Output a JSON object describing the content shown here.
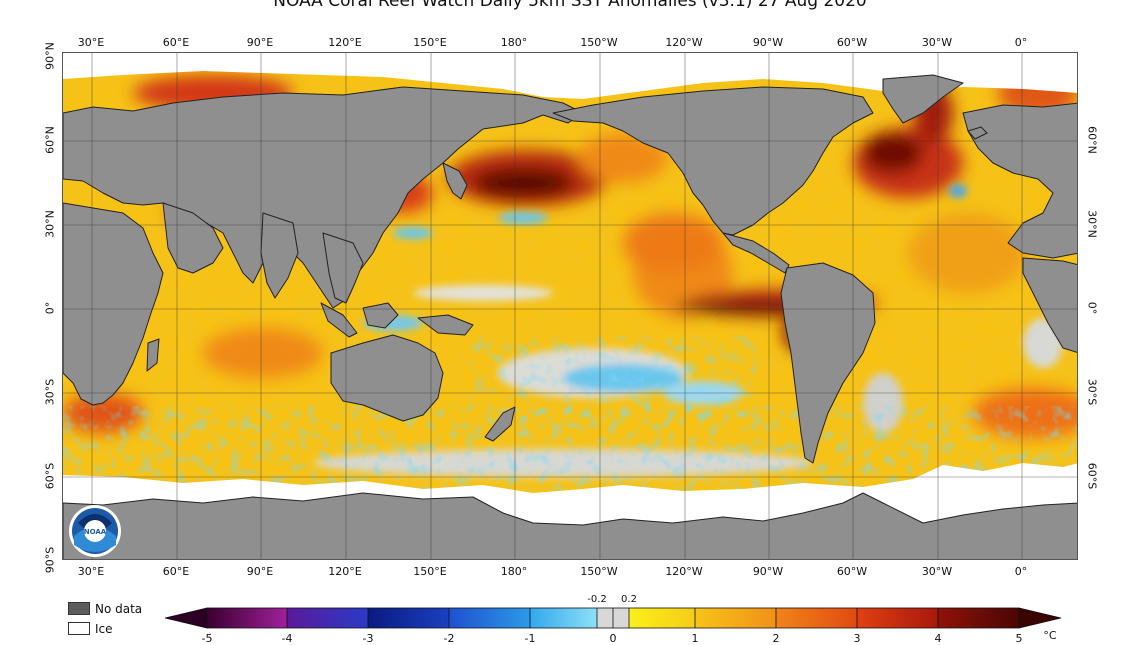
{
  "title": "NOAA Coral Reef Watch Daily 5km SST Anomalies (v3.1) 27 Aug 2020",
  "map": {
    "lon_labels_top": [
      "30°E",
      "60°E",
      "90°E",
      "120°E",
      "150°E",
      "180°",
      "150°W",
      "120°W",
      "90°W",
      "60°W",
      "30°W",
      "0°"
    ],
    "lon_labels_bottom": [
      "30°E",
      "60°E",
      "90°E",
      "120°E",
      "150°E",
      "180°",
      "150°W",
      "120°W",
      "90°W",
      "60°W",
      "30°W",
      "0°"
    ],
    "lat_labels_left": [
      "90°N",
      "60°N",
      "30°N",
      "0°",
      "30°S",
      "60°S",
      "90°S"
    ],
    "lat_labels_right": [
      "60°N",
      "30°N",
      "0°",
      "30°S",
      "60°S"
    ],
    "logo_text": "NOAA",
    "colors": {
      "land": "#8f8f8f",
      "no_data": "#5c5c5c",
      "ice": "#ffffff",
      "ocean_base": "#f5c21a",
      "graticule": "#333333"
    }
  },
  "legend": {
    "no_data_label": "No data",
    "ice_label": "Ice"
  },
  "colorbar": {
    "unit": "°C",
    "ticks": [
      "-5",
      "-4",
      "-3",
      "-2",
      "-1",
      "0",
      "1",
      "2",
      "3",
      "4",
      "5"
    ],
    "inner_labels": [
      "-0.2",
      "0.2"
    ],
    "colors": [
      "#3b0030",
      "#7a1a70",
      "#1a1a8a",
      "#1f50d0",
      "#42b6f0",
      "#d8d8d8",
      "#f6e21c",
      "#f7b117",
      "#ee6a10",
      "#c82414",
      "#6e0a06"
    ]
  }
}
